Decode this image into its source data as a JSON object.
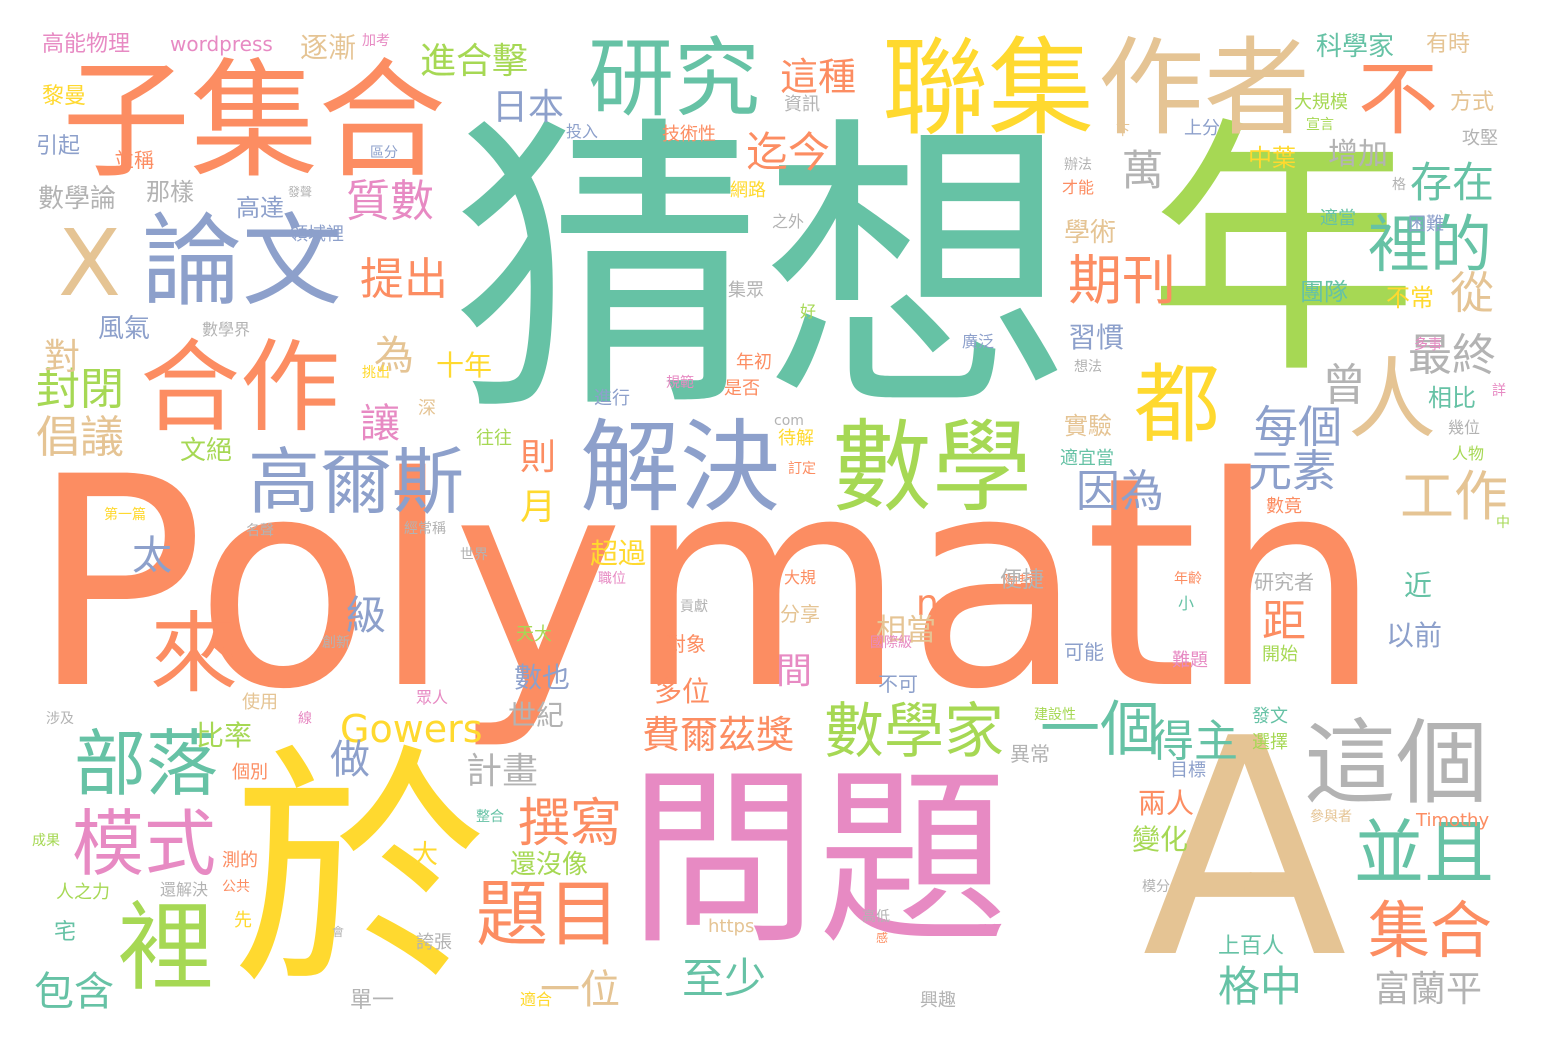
{
  "palette": [
    "#66c2a5",
    "#fc8d62",
    "#8da0cb",
    "#e78ac3",
    "#a6d854",
    "#ffd92f",
    "#e5c494",
    "#b3b3b3"
  ],
  "words": [
    "Polymath",
    "猜想",
    "問題",
    "於",
    "年",
    "A",
    "子集合",
    "聯集",
    "作者",
    "研究",
    "論文",
    "X",
    "不",
    "合作",
    "數學",
    "解決",
    "都",
    "人",
    "高爾斯",
    "這個",
    "裡",
    "來",
    "部落",
    "模式",
    "題目",
    "撰寫",
    "並且",
    "集合",
    "數學家",
    "一個",
    "得主",
    "費爾茲獎",
    "Gowers",
    "進合擊",
    "這種",
    "日本",
    "迄今",
    "萬",
    "存在",
    "裡的",
    "期刊",
    "質數",
    "提出",
    "工作",
    "因為",
    "元素",
    "每個",
    "最終",
    "曾",
    "從",
    "封閉",
    "倡議",
    "對",
    "為",
    "讓",
    "十年",
    "則",
    "月",
    "太",
    "級",
    "n",
    "相當",
    "間",
    "距",
    "至少",
    "格中",
    "富蘭平",
    "包含",
    "一位",
    "計畫",
    "世紀",
    "數也",
    "多位",
    "做",
    "比率",
    "高能物理",
    "wordpress",
    "逐漸",
    "加考",
    "科學家",
    "有時",
    "黎曼",
    "引起",
    "並稱",
    "那樣",
    "數學論",
    "高達",
    "風氣",
    "數學界",
    "學術",
    "中葉",
    "增加",
    "大規模",
    "方式",
    "攻堅",
    "不常",
    "團隊",
    "相比",
    "習慣",
    "實驗",
    "適宜當",
    "超過",
    "以前",
    "近",
    "研究者",
    "開始",
    "可能",
    "難題",
    "不可",
    "發文",
    "選擇",
    "目標",
    "兩人",
    "變化",
    "還沒像",
    "容易",
    "上百人",
    "Timothy",
    "https",
    "大",
    "宅",
    "先",
    "公共",
    "誇張",
    "適合",
    "單一",
    "興趣",
    "人之力",
    "成果",
    "涉及",
    "使用",
    "個別",
    "測的",
    "資訊",
    "投入",
    "技術性",
    "網路",
    "之外",
    "集眾",
    "好",
    "廣泛",
    "年初",
    "是否",
    "進行",
    "規範",
    "往往",
    "待解",
    "訂定",
    "文絕",
    "深",
    "挑出",
    "第一篇",
    "名聲",
    "經常稱",
    "數竟",
    "人物",
    "幾位",
    "詳",
    "困難",
    "適當",
    "格",
    "宣言",
    "下",
    "上分",
    "辦法",
    "才能",
    "多事",
    "想法",
    "大規",
    "職位",
    "貢獻",
    "分享",
    "對象",
    "陶哲軒",
    "年齡",
    "小",
    "便捷",
    "異常",
    "世界",
    "眾人",
    "建設性",
    "整合",
    "參與者",
    "模分",
    "高低",
    "感",
    "還解決",
    "會",
    "線",
    "創新",
    "領域裡",
    "發聲",
    "區分",
    "國際級",
    "天大",
    "中",
    "com",
    "增加",
    "迄今"
  ]
}
